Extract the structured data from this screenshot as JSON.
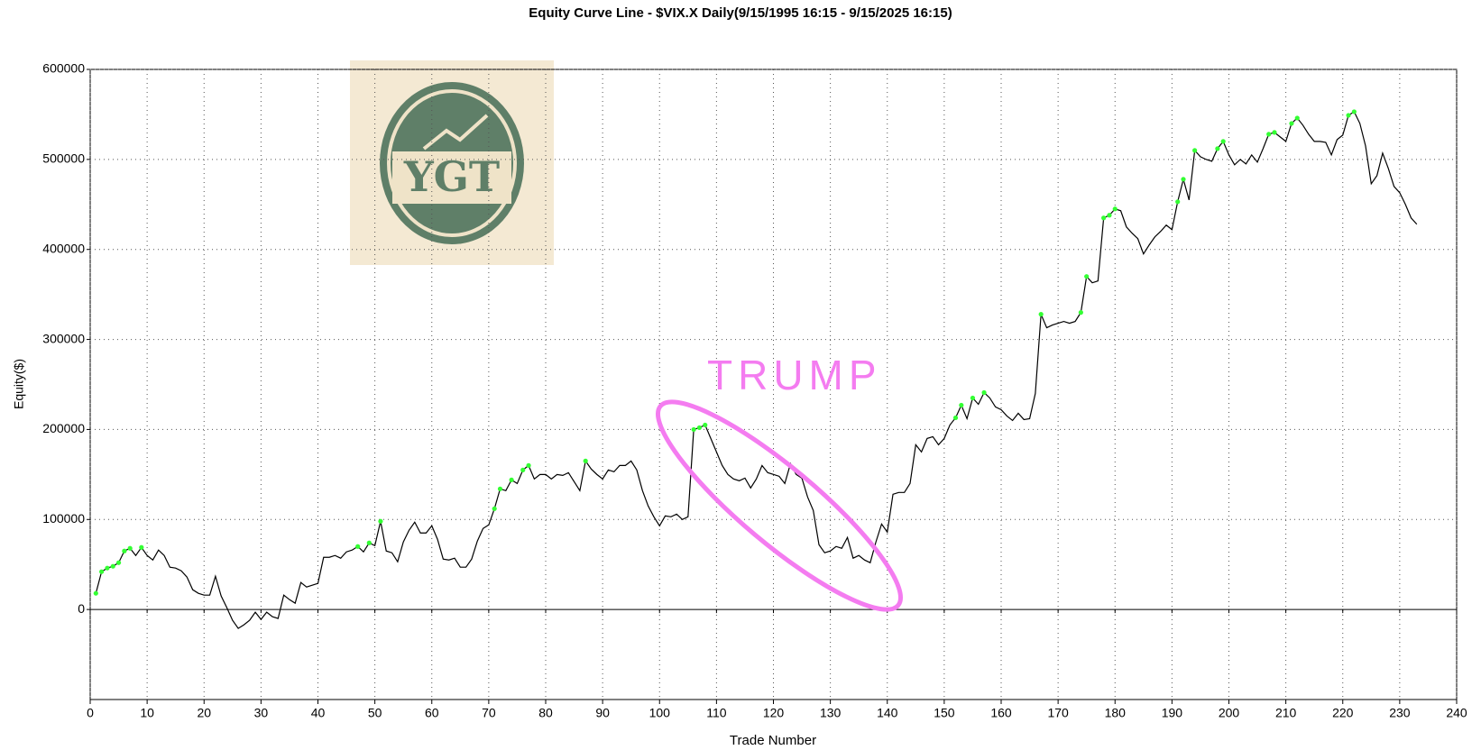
{
  "chart_data": {
    "type": "line",
    "title": "Equity Curve Line - $VIX.X Daily(9/15/1995 16:15 - 9/15/2025 16:15)",
    "x_label": "Trade Number",
    "y_label": "Equity($)",
    "annotation": "TRUMP",
    "logo_text": "YGT",
    "xlim": [
      0,
      240
    ],
    "ylim": [
      -100000,
      600000
    ],
    "xticks": [
      0,
      10,
      20,
      30,
      40,
      50,
      60,
      70,
      80,
      90,
      100,
      110,
      120,
      130,
      140,
      150,
      160,
      170,
      180,
      190,
      200,
      210,
      220,
      230,
      240
    ],
    "yticks": [
      0,
      100000,
      200000,
      300000,
      400000,
      500000,
      600000
    ],
    "grid": true,
    "highlight_color": "#33ff33",
    "x": [
      1,
      2,
      3,
      4,
      5,
      6,
      7,
      8,
      9,
      10,
      11,
      12,
      13,
      14,
      15,
      16,
      17,
      18,
      19,
      20,
      21,
      22,
      23,
      24,
      25,
      26,
      27,
      28,
      29,
      30,
      31,
      32,
      33,
      34,
      35,
      36,
      37,
      38,
      39,
      40,
      41,
      42,
      43,
      44,
      45,
      46,
      47,
      48,
      49,
      50,
      51,
      52,
      53,
      54,
      55,
      56,
      57,
      58,
      59,
      60,
      61,
      62,
      63,
      64,
      65,
      66,
      67,
      68,
      69,
      70,
      71,
      72,
      73,
      74,
      75,
      76,
      77,
      78,
      79,
      80,
      81,
      82,
      83,
      84,
      85,
      86,
      87,
      88,
      89,
      90,
      91,
      92,
      93,
      94,
      95,
      96,
      97,
      98,
      99,
      100,
      101,
      102,
      103,
      104,
      105,
      106,
      107,
      108,
      109,
      110,
      111,
      112,
      113,
      114,
      115,
      116,
      117,
      118,
      119,
      120,
      121,
      122,
      123,
      124,
      125,
      126,
      127,
      128,
      129,
      130,
      131,
      132,
      133,
      134,
      135,
      136,
      137,
      138,
      139,
      140,
      141,
      142,
      143,
      144,
      145,
      146,
      147,
      148,
      149,
      150,
      151,
      152,
      153,
      154,
      155,
      156,
      157,
      158,
      159,
      160,
      161,
      162,
      163,
      164,
      165,
      166,
      167,
      168,
      169,
      170,
      171,
      172,
      173,
      174,
      175,
      176,
      177,
      178,
      179,
      180,
      181,
      182,
      183,
      184,
      185,
      186,
      187,
      188,
      189,
      190,
      191,
      192,
      193,
      194,
      195,
      196,
      197,
      198,
      199,
      200,
      201,
      202,
      203,
      204,
      205,
      206,
      207,
      208,
      209,
      210,
      211,
      212,
      213,
      214,
      215,
      216,
      217,
      218,
      219,
      220,
      221,
      222,
      223,
      224,
      225,
      226,
      227,
      228,
      229,
      230,
      231,
      232,
      233
    ],
    "series": [
      {
        "name": "Equity",
        "color": "#000000",
        "values": [
          18000,
          42000,
          46000,
          48000,
          52000,
          65000,
          68000,
          60000,
          69000,
          60000,
          55000,
          66000,
          60000,
          47000,
          46000,
          43000,
          36000,
          22000,
          18000,
          16000,
          16000,
          37000,
          15000,
          2000,
          -12000,
          -21000,
          -17000,
          -12000,
          -3000,
          -11000,
          -3000,
          -8000,
          -10000,
          16000,
          11000,
          7000,
          30000,
          25000,
          27000,
          29000,
          58000,
          58000,
          60000,
          57000,
          64000,
          66000,
          70000,
          64000,
          74000,
          71000,
          98000,
          65000,
          63000,
          53000,
          75000,
          88000,
          97000,
          85000,
          85000,
          93000,
          78000,
          56000,
          55000,
          57000,
          47000,
          47000,
          56000,
          76000,
          90000,
          94000,
          112000,
          134000,
          132000,
          144000,
          140000,
          155000,
          160000,
          145000,
          150000,
          150000,
          145000,
          150000,
          149000,
          152000,
          142000,
          132000,
          165000,
          156000,
          150000,
          145000,
          155000,
          153000,
          160000,
          160000,
          165000,
          155000,
          132000,
          115000,
          103000,
          93000,
          104000,
          103000,
          106000,
          100000,
          103000,
          200000,
          202000,
          205000,
          190000,
          175000,
          160000,
          150000,
          145000,
          143000,
          146000,
          135000,
          145000,
          160000,
          152000,
          150000,
          148000,
          140000,
          162000,
          150000,
          146000,
          125000,
          110000,
          72000,
          63000,
          65000,
          70000,
          68000,
          80000,
          57000,
          60000,
          55000,
          52000,
          75000,
          95000,
          86000,
          128000,
          130000,
          130000,
          140000,
          183000,
          175000,
          190000,
          192000,
          183000,
          190000,
          205000,
          213000,
          227000,
          212000,
          235000,
          228000,
          241000,
          235000,
          225000,
          222000,
          215000,
          210000,
          218000,
          211000,
          212000,
          240000,
          328000,
          313000,
          316000,
          318000,
          320000,
          318000,
          320000,
          330000,
          370000,
          363000,
          365000,
          435000,
          438000,
          445000,
          443000,
          425000,
          418000,
          412000,
          395000,
          405000,
          414000,
          420000,
          427000,
          422000,
          453000,
          478000,
          455000,
          510000,
          503000,
          500000,
          498000,
          512000,
          520000,
          505000,
          494000,
          500000,
          495000,
          505000,
          497000,
          512000,
          528000,
          530000,
          525000,
          520000,
          540000,
          546000,
          538000,
          528000,
          520000,
          520000,
          519000,
          505000,
          522000,
          527000,
          549000,
          553000,
          540000,
          515000,
          473000,
          482000,
          507000,
          490000,
          470000,
          463000,
          450000,
          435000,
          428000
        ]
      }
    ]
  }
}
